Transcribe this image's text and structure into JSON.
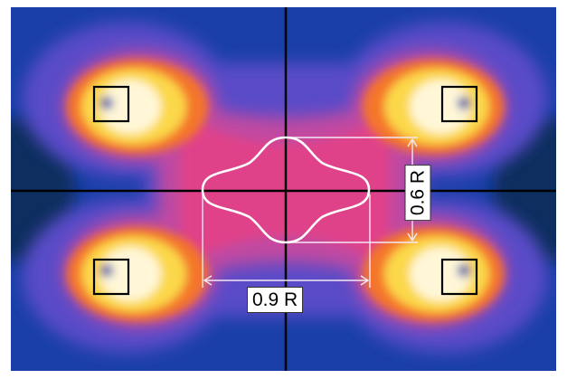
{
  "diagram": {
    "colors": {
      "background": "#ffffff",
      "field_outer": "#1a3fa8",
      "field_deep": "#0c2f5e",
      "field_mid": "#5a4cc8",
      "field_inner": "#c24aa0",
      "field_core": "#e0428a",
      "hot_orange": "#f4762c",
      "hot_yellow": "#fbd84a",
      "hot_white": "#fff7d8",
      "axis": "#000000",
      "contour": "#ffffff",
      "dimension": "#f4e8f4"
    },
    "width_label": "0.9 R",
    "height_label": "0.6 R",
    "sources": [
      {
        "name": "top-left"
      },
      {
        "name": "top-right"
      },
      {
        "name": "bottom-left"
      },
      {
        "name": "bottom-right"
      }
    ]
  }
}
